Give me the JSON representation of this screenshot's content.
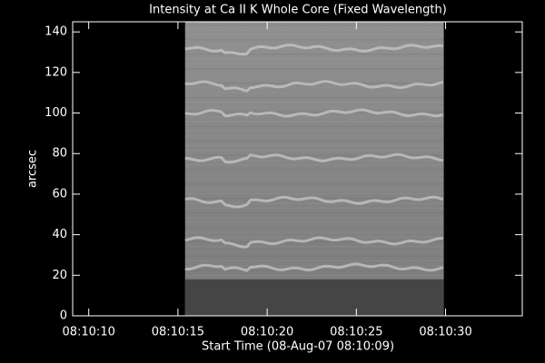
{
  "chart_data": {
    "type": "image",
    "title": "Intensity at Ca II K Whole Core (Fixed Wavelength)",
    "xlabel": "Start Time (08-Aug-07 08:10:09)",
    "ylabel": "arcsec",
    "xlim": [
      0.1,
      25.3
    ],
    "xticks": [
      {
        "value": 1,
        "label": "08:10:10"
      },
      {
        "value": 6,
        "label": "08:10:15"
      },
      {
        "value": 11,
        "label": "08:10:20"
      },
      {
        "value": 16,
        "label": "08:10:25"
      },
      {
        "value": 21,
        "label": "08:10:30"
      }
    ],
    "ylim": [
      0,
      145
    ],
    "yticks": [
      0,
      20,
      40,
      60,
      80,
      100,
      120,
      140
    ],
    "image_xrange": [
      6.4,
      20.9
    ],
    "image_floor": 18,
    "bands": [
      24,
      37,
      57,
      78,
      100,
      114,
      132
    ]
  }
}
